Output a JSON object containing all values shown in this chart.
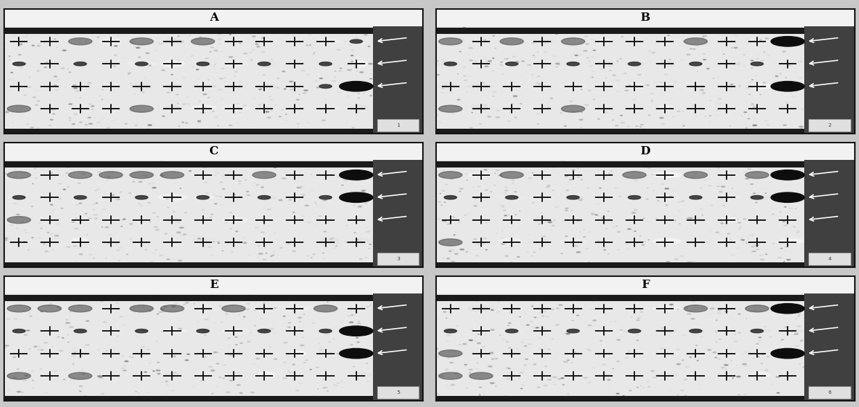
{
  "figure_width": 12.39,
  "figure_height": 5.88,
  "dpi": 100,
  "panels": [
    "A",
    "B",
    "C",
    "D",
    "E",
    "F"
  ],
  "outer_bg": "#c8c8c8",
  "header_bg": "#f2f2f2",
  "membrane_bg": "#e8e8e8",
  "top_band_color": "#1a1a1a",
  "border_color": "#111111",
  "label_fontsize": 12,
  "cross_color": "#111111",
  "dark_dot": "#0d0d0d",
  "medium_dark_dot": "#2a2a2a",
  "medium_dot": "#555555",
  "light_dot": "#888888",
  "very_light_dot": "#aaaaaa",
  "right_side_bg": "#505050",
  "panel_A": {
    "row1": [
      0,
      0,
      1,
      0,
      1,
      0,
      1,
      0,
      0,
      0,
      0,
      2
    ],
    "row2": [
      2,
      0,
      2,
      0,
      2,
      0,
      2,
      0,
      2,
      0,
      2,
      0
    ],
    "row3": [
      0,
      0,
      0,
      0,
      0,
      0,
      0,
      0,
      0,
      0,
      2,
      3
    ],
    "row4": [
      1,
      0,
      0,
      0,
      1,
      0,
      0,
      0,
      0,
      0,
      0,
      0
    ]
  },
  "panel_B": {
    "row1": [
      1,
      0,
      1,
      0,
      1,
      0,
      0,
      0,
      1,
      0,
      0,
      3
    ],
    "row2": [
      2,
      0,
      2,
      0,
      2,
      0,
      2,
      0,
      2,
      0,
      2,
      0
    ],
    "row3": [
      0,
      0,
      0,
      0,
      0,
      0,
      0,
      0,
      0,
      0,
      0,
      3
    ],
    "row4": [
      1,
      0,
      0,
      0,
      1,
      0,
      0,
      0,
      0,
      0,
      0,
      0
    ]
  },
  "panel_C": {
    "row1": [
      1,
      0,
      1,
      1,
      1,
      1,
      0,
      0,
      1,
      0,
      0,
      3
    ],
    "row2": [
      2,
      0,
      2,
      0,
      2,
      0,
      2,
      0,
      2,
      0,
      2,
      3
    ],
    "row3": [
      1,
      0,
      0,
      0,
      0,
      0,
      0,
      0,
      0,
      0,
      0,
      0
    ],
    "row4": [
      0,
      0,
      0,
      0,
      0,
      0,
      0,
      0,
      0,
      0,
      0,
      0
    ]
  },
  "panel_D": {
    "row1": [
      1,
      0,
      1,
      0,
      0,
      0,
      1,
      0,
      1,
      0,
      1,
      3
    ],
    "row2": [
      2,
      0,
      2,
      0,
      2,
      0,
      2,
      0,
      2,
      0,
      2,
      3
    ],
    "row3": [
      0,
      0,
      0,
      0,
      0,
      0,
      0,
      0,
      0,
      0,
      0,
      0
    ],
    "row4": [
      1,
      0,
      0,
      0,
      0,
      0,
      0,
      0,
      0,
      0,
      0,
      0
    ]
  },
  "panel_E": {
    "row1": [
      1,
      1,
      1,
      0,
      1,
      1,
      0,
      1,
      0,
      0,
      1,
      0
    ],
    "row2": [
      2,
      0,
      2,
      0,
      2,
      0,
      2,
      0,
      2,
      0,
      2,
      3
    ],
    "row3": [
      0,
      0,
      0,
      0,
      0,
      0,
      0,
      0,
      0,
      0,
      0,
      3
    ],
    "row4": [
      1,
      0,
      1,
      0,
      0,
      0,
      0,
      0,
      0,
      0,
      0,
      0
    ]
  },
  "panel_F": {
    "row1": [
      0,
      0,
      0,
      0,
      0,
      0,
      0,
      0,
      1,
      0,
      1,
      3
    ],
    "row2": [
      2,
      0,
      2,
      0,
      2,
      0,
      2,
      0,
      2,
      0,
      2,
      0
    ],
    "row3": [
      1,
      0,
      0,
      0,
      0,
      0,
      0,
      0,
      0,
      0,
      0,
      3
    ],
    "row4": [
      1,
      1,
      0,
      0,
      0,
      0,
      0,
      0,
      0,
      0,
      0,
      0
    ]
  }
}
